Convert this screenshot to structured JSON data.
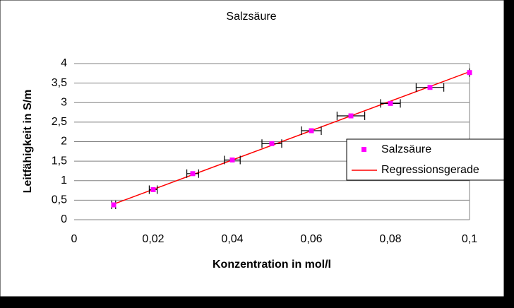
{
  "chart_data": {
    "type": "scatter",
    "title": "Salzsäure",
    "x_label": "Konzentration in mol/l",
    "y_label": "Leitfähigkeit in S/m",
    "series": [
      {
        "name": "Salzsäure",
        "color": "#ff00ff",
        "x": [
          0.01,
          0.02,
          0.03,
          0.04,
          0.05,
          0.06,
          0.07,
          0.08,
          0.09,
          0.1
        ],
        "values": [
          0.38,
          0.77,
          1.18,
          1.53,
          1.95,
          2.28,
          2.66,
          2.98,
          3.39,
          3.77
        ],
        "x_err": [
          0.0005,
          0.001,
          0.0015,
          0.002,
          0.0025,
          0.0025,
          0.0035,
          0.0025,
          0.0035,
          0
        ]
      },
      {
        "name": "Regressionsgerade",
        "color": "#ff0000",
        "x": [
          0.01,
          0.1
        ],
        "values": [
          0.4,
          3.79
        ]
      }
    ],
    "xlim": [
      0,
      0.1
    ],
    "ylim": [
      0,
      4
    ],
    "xticks": [
      0,
      {
        "value": 0.02,
        "label": "0,02"
      },
      {
        "value": 0.04,
        "label": "0,04"
      },
      {
        "value": 0.06,
        "label": "0,06"
      },
      {
        "value": 0.08,
        "label": "0,08"
      },
      {
        "value": 0.1,
        "label": "0,1"
      }
    ],
    "yticks": [
      0,
      {
        "value": 0.5,
        "label": "0,5"
      },
      1,
      {
        "value": 1.5,
        "label": "1,5"
      },
      2,
      {
        "value": 2.5,
        "label": "2,5"
      },
      3,
      {
        "value": 3.5,
        "label": "3,5"
      },
      4
    ],
    "grid": true
  }
}
